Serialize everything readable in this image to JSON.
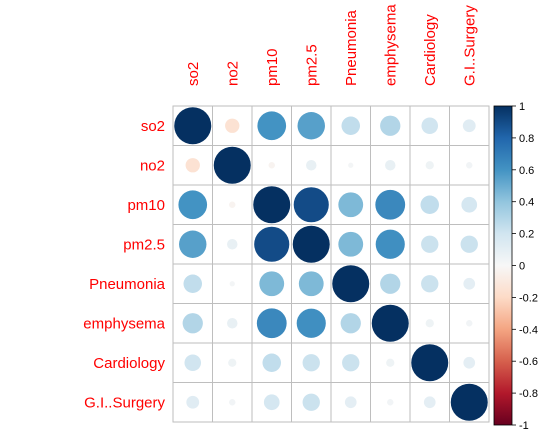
{
  "chart_data": {
    "type": "heatmap",
    "style": "corrplot-circle",
    "variables": [
      "so2",
      "no2",
      "pm10",
      "pm2.5",
      "Pneumonia",
      "emphysema",
      "Cardiology",
      "G.I..Surgery"
    ],
    "matrix": [
      [
        1.0,
        -0.15,
        0.6,
        0.55,
        0.25,
        0.3,
        0.2,
        0.12
      ],
      [
        -0.15,
        1.0,
        -0.03,
        0.08,
        0.02,
        0.08,
        0.05,
        0.03
      ],
      [
        0.6,
        -0.03,
        1.0,
        0.9,
        0.45,
        0.65,
        0.25,
        0.18
      ],
      [
        0.55,
        0.08,
        0.9,
        1.0,
        0.45,
        0.62,
        0.22,
        0.22
      ],
      [
        0.25,
        0.02,
        0.45,
        0.45,
        1.0,
        0.3,
        0.22,
        0.1
      ],
      [
        0.3,
        0.08,
        0.65,
        0.62,
        0.3,
        1.0,
        0.05,
        0.03
      ],
      [
        0.2,
        0.05,
        0.25,
        0.22,
        0.22,
        0.05,
        1.0,
        0.1
      ],
      [
        0.12,
        0.03,
        0.18,
        0.22,
        0.1,
        0.03,
        0.1,
        1.0
      ]
    ],
    "colorbar": {
      "range": [
        -1,
        1
      ],
      "ticks": [
        "1",
        "0.8",
        "0.6",
        "0.4",
        "0.2",
        "0",
        "-0.2",
        "-0.4",
        "-0.6",
        "-0.8",
        "-1"
      ]
    },
    "colors": {
      "positive_strong": "#053061",
      "positive_mid": "#4393c3",
      "neutral": "#f7f7f7",
      "negative_mid": "#d6604d",
      "negative_strong": "#67001f",
      "label": "#ff0000",
      "grid": "#bebebe"
    },
    "grid": true
  }
}
